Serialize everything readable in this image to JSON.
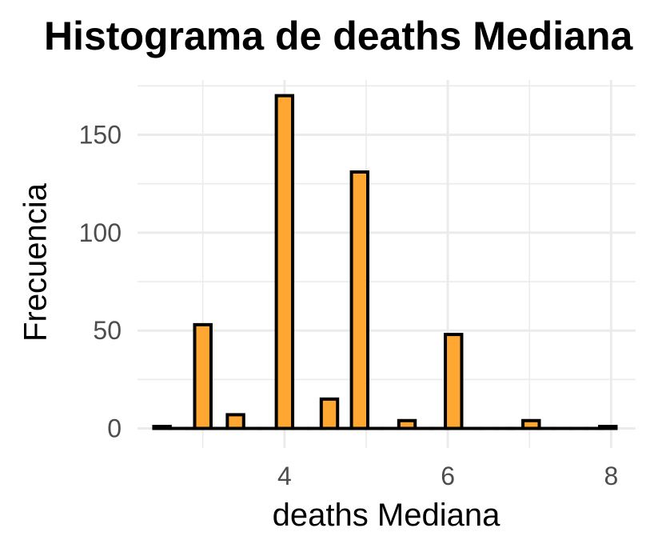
{
  "chart_data": {
    "type": "bar",
    "title": "Histograma de deaths Mediana",
    "xlabel": "deaths Mediana",
    "ylabel": "Frecuencia",
    "bin_width": 0.2,
    "bins": [
      {
        "x": 2.5,
        "count": 1
      },
      {
        "x": 2.7,
        "count": 0
      },
      {
        "x": 2.9,
        "count": 0
      },
      {
        "x": 3.0,
        "count": 53
      },
      {
        "x": 3.2,
        "count": 0
      },
      {
        "x": 3.4,
        "count": 7
      },
      {
        "x": 3.6,
        "count": 0
      },
      {
        "x": 3.8,
        "count": 0
      },
      {
        "x": 4.0,
        "count": 170
      },
      {
        "x": 4.2,
        "count": 0
      },
      {
        "x": 4.4,
        "count": 0
      },
      {
        "x": 4.55,
        "count": 15
      },
      {
        "x": 4.75,
        "count": 0
      },
      {
        "x": 4.92,
        "count": 131
      },
      {
        "x": 5.1,
        "count": 0
      },
      {
        "x": 5.3,
        "count": 0
      },
      {
        "x": 5.5,
        "count": 4
      },
      {
        "x": 5.7,
        "count": 0
      },
      {
        "x": 5.9,
        "count": 0
      },
      {
        "x": 6.07,
        "count": 48
      },
      {
        "x": 6.3,
        "count": 0
      },
      {
        "x": 6.5,
        "count": 0
      },
      {
        "x": 6.7,
        "count": 0
      },
      {
        "x": 6.85,
        "count": 0
      },
      {
        "x": 7.02,
        "count": 4
      },
      {
        "x": 7.2,
        "count": 0
      },
      {
        "x": 7.4,
        "count": 0
      },
      {
        "x": 7.6,
        "count": 0
      },
      {
        "x": 7.8,
        "count": 0
      },
      {
        "x": 7.96,
        "count": 1
      }
    ],
    "xlim": [
      2.2,
      8.3
    ],
    "ylim": [
      -10,
      178
    ],
    "x_ticks": [
      4,
      6,
      8
    ],
    "y_ticks": [
      0,
      50,
      100,
      150
    ],
    "grid": true,
    "colors": {
      "fill": "#FFA733",
      "stroke": "#000000",
      "grid": "#EBEBEB",
      "tick_text": "#4D4D4D"
    }
  }
}
